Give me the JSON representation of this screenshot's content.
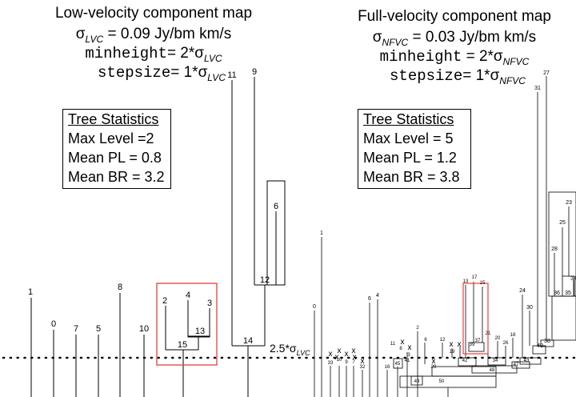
{
  "left_panel": {
    "title": "Low-velocity component map",
    "sigma_line": "σLVC = 0.09 Jy/bm km/s",
    "sigma_symbol": "σ",
    "sigma_sub": "LVC",
    "sigma_value": " = 0.09 Jy/bm km/s",
    "minheight_word": "minheight",
    "minheight_expr": "= 2*σ",
    "minheight_sub": "LVC",
    "stepsize_word": "stepsize",
    "stepsize_expr": "= 1*σ",
    "stepsize_sub": "LVC",
    "stats": {
      "header": "Tree Statistics",
      "max_level": "Max Level =2",
      "mean_pl": "Mean PL = 0.8",
      "mean_br": "Mean BR = 3.2"
    }
  },
  "right_panel": {
    "title": "Full-velocity component map",
    "sigma_symbol": "σ",
    "sigma_sub": "NFVC",
    "sigma_value": " = 0.03 Jy/bm km/s",
    "minheight_word": "minheight",
    "minheight_expr": " = 2*σ",
    "minheight_sub": "NFVC",
    "stepsize_word": "stepsize",
    "stepsize_expr": "= 1*σ",
    "stepsize_sub": "NFVC",
    "stats": {
      "header": "Tree Statistics",
      "max_level": "Max Level = 5",
      "mean_pl": "Mean PL = 1.2",
      "mean_br": "Mean BR = 3.8"
    }
  },
  "threshold": {
    "prefix": "2.5*σ",
    "sub": "LVC"
  },
  "left_tree": {
    "leaf_labels": [
      "1",
      "0",
      "7",
      "5",
      "8",
      "10",
      "2",
      "4",
      "3",
      "11",
      "9",
      "6"
    ],
    "branch_labels": [
      "13",
      "15",
      "12",
      "14"
    ]
  },
  "right_tree": {
    "labels_big": [
      "1",
      "0",
      "6",
      "4",
      "24",
      "31",
      "27",
      "23",
      "25",
      "28",
      "34",
      "35",
      "36",
      "30",
      "38",
      "40"
    ],
    "labels_small": [
      "13",
      "17",
      "15",
      "37",
      "39",
      "42",
      "11",
      "8",
      "3",
      "2",
      "6",
      "12",
      "19",
      "21",
      "20",
      "18",
      "26",
      "34",
      "47",
      "43",
      "48",
      "33",
      "10",
      "9",
      "7",
      "32",
      "16",
      "45",
      "41",
      "49",
      "29",
      "50"
    ],
    "x_marks": [
      "x",
      "x",
      "x",
      "x",
      "x",
      "x",
      "x",
      "x",
      "x",
      "x",
      "x",
      "x"
    ]
  }
}
